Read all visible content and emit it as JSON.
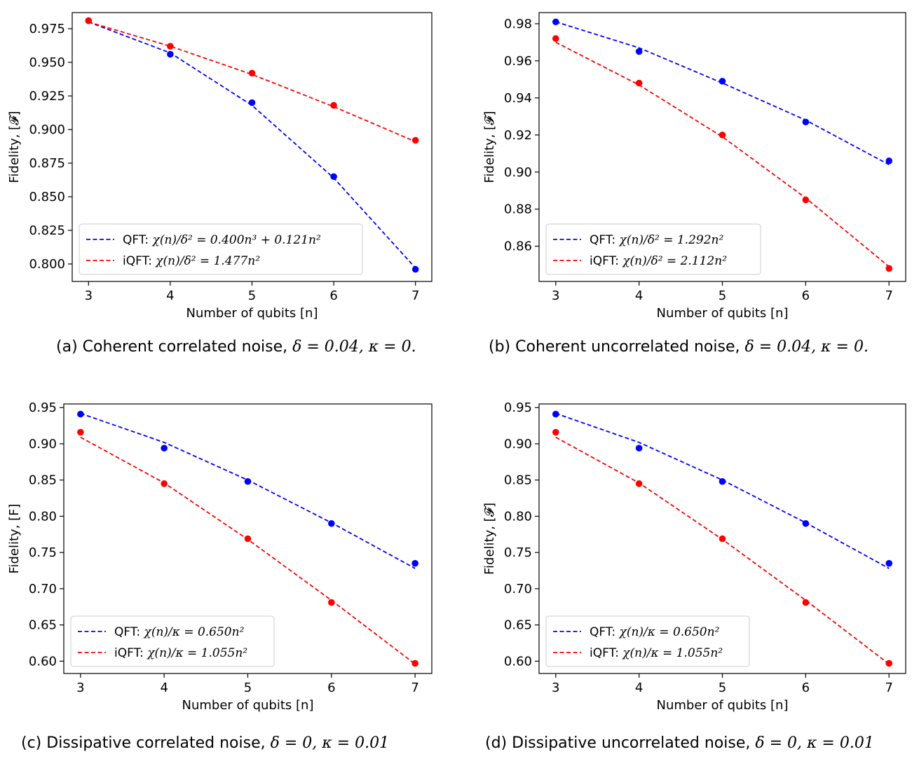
{
  "chart_data": [
    {
      "type": "line",
      "panel": "a",
      "caption": {
        "text": "(a) Coherent correlated noise, ",
        "math": "δ = 0.04, κ = 0."
      },
      "xlabel": "Number of qubits [n]",
      "ylabel": "Fidelity, [𝓕]",
      "x": [
        3,
        4,
        5,
        6,
        7
      ],
      "xlim": [
        2.8,
        7.2
      ],
      "ylim": [
        0.787,
        0.987
      ],
      "yticks": [
        0.8,
        0.825,
        0.85,
        0.875,
        0.9,
        0.925,
        0.95,
        0.975
      ],
      "ytick_labels": [
        "0.800",
        "0.825",
        "0.850",
        "0.875",
        "0.900",
        "0.925",
        "0.950",
        "0.975"
      ],
      "xticks": [
        3,
        4,
        5,
        6,
        7
      ],
      "legend_position": "lower-left",
      "series": [
        {
          "name": "QFT",
          "legend": "QFT: χ(n)/δ² = 0.400n³ + 0.121n²",
          "color": "#0000ff",
          "points": [
            0.981,
            0.956,
            0.92,
            0.865,
            0.796
          ],
          "fit": [
            0.98,
            0.957,
            0.918,
            0.864,
            0.797
          ]
        },
        {
          "name": "iQFT",
          "legend": "iQFT: χ(n)/δ² = 1.477n²",
          "color": "#ff0000",
          "points": [
            0.981,
            0.962,
            0.942,
            0.918,
            0.892
          ],
          "fit": [
            0.98,
            0.962,
            0.941,
            0.917,
            0.891
          ]
        }
      ]
    },
    {
      "type": "line",
      "panel": "b",
      "caption": {
        "text": "(b) Coherent uncorrelated noise, ",
        "math": "δ = 0.04, κ = 0."
      },
      "xlabel": "Number of qubits [n]",
      "ylabel": "Fidelity, [𝓕]",
      "x": [
        3,
        4,
        5,
        6,
        7
      ],
      "xlim": [
        2.8,
        7.2
      ],
      "ylim": [
        0.841,
        0.986
      ],
      "yticks": [
        0.86,
        0.88,
        0.9,
        0.92,
        0.94,
        0.96,
        0.98
      ],
      "ytick_labels": [
        "0.86",
        "0.88",
        "0.90",
        "0.92",
        "0.94",
        "0.96",
        "0.98"
      ],
      "xticks": [
        3,
        4,
        5,
        6,
        7
      ],
      "legend_position": "lower-left",
      "series": [
        {
          "name": "QFT",
          "legend": "QFT: χ(n)/δ² = 1.292n²",
          "color": "#0000ff",
          "points": [
            0.981,
            0.965,
            0.949,
            0.927,
            0.906
          ],
          "fit": [
            0.981,
            0.967,
            0.948,
            0.928,
            0.904
          ]
        },
        {
          "name": "iQFT",
          "legend": "iQFT: χ(n)/δ² = 2.112n²",
          "color": "#ff0000",
          "points": [
            0.972,
            0.948,
            0.92,
            0.885,
            0.848
          ],
          "fit": [
            0.97,
            0.947,
            0.919,
            0.886,
            0.849
          ]
        }
      ]
    },
    {
      "type": "line",
      "panel": "c",
      "caption": {
        "text": "(c) Dissipative correlated noise, ",
        "math": "δ = 0, κ = 0.01"
      },
      "xlabel": "Number of qubits [n]",
      "ylabel": "Fidelity, [F]",
      "x": [
        3,
        4,
        5,
        6,
        7
      ],
      "xlim": [
        2.8,
        7.2
      ],
      "ylim": [
        0.583,
        0.955
      ],
      "yticks": [
        0.6,
        0.65,
        0.7,
        0.75,
        0.8,
        0.85,
        0.9,
        0.95
      ],
      "ytick_labels": [
        "0.60",
        "0.65",
        "0.70",
        "0.75",
        "0.80",
        "0.85",
        "0.90",
        "0.95"
      ],
      "xticks": [
        3,
        4,
        5,
        6,
        7
      ],
      "legend_position": "lower-left",
      "series": [
        {
          "name": "QFT",
          "legend": "QFT: χ(n)/κ = 0.650n²",
          "color": "#0000ff",
          "points": [
            0.941,
            0.894,
            0.848,
            0.79,
            0.735
          ],
          "fit": [
            0.942,
            0.902,
            0.85,
            0.791,
            0.728
          ]
        },
        {
          "name": "iQFT",
          "legend": "iQFT: χ(n)/κ = 1.055n²",
          "color": "#ff0000",
          "points": [
            0.916,
            0.845,
            0.769,
            0.681,
            0.597
          ],
          "fit": [
            0.909,
            0.846,
            0.768,
            0.684,
            0.596
          ]
        }
      ]
    },
    {
      "type": "line",
      "panel": "d",
      "caption": {
        "text": "(d) Dissipative uncorrelated noise, ",
        "math": "δ = 0, κ = 0.01"
      },
      "xlabel": "Number of qubits [n]",
      "ylabel": "Fidelity, [𝓕]",
      "x": [
        3,
        4,
        5,
        6,
        7
      ],
      "xlim": [
        2.8,
        7.2
      ],
      "ylim": [
        0.583,
        0.955
      ],
      "yticks": [
        0.6,
        0.65,
        0.7,
        0.75,
        0.8,
        0.85,
        0.9,
        0.95
      ],
      "ytick_labels": [
        "0.60",
        "0.65",
        "0.70",
        "0.75",
        "0.80",
        "0.85",
        "0.90",
        "0.95"
      ],
      "xticks": [
        3,
        4,
        5,
        6,
        7
      ],
      "legend_position": "lower-left",
      "series": [
        {
          "name": "QFT",
          "legend": "QFT: χ(n)/κ = 0.650n²",
          "color": "#0000ff",
          "points": [
            0.941,
            0.894,
            0.848,
            0.79,
            0.735
          ],
          "fit": [
            0.942,
            0.902,
            0.85,
            0.791,
            0.728
          ]
        },
        {
          "name": "iQFT",
          "legend": "iQFT: χ(n)/κ = 1.055n²",
          "color": "#ff0000",
          "points": [
            0.916,
            0.845,
            0.769,
            0.681,
            0.597
          ],
          "fit": [
            0.909,
            0.846,
            0.768,
            0.684,
            0.596
          ]
        }
      ]
    }
  ]
}
